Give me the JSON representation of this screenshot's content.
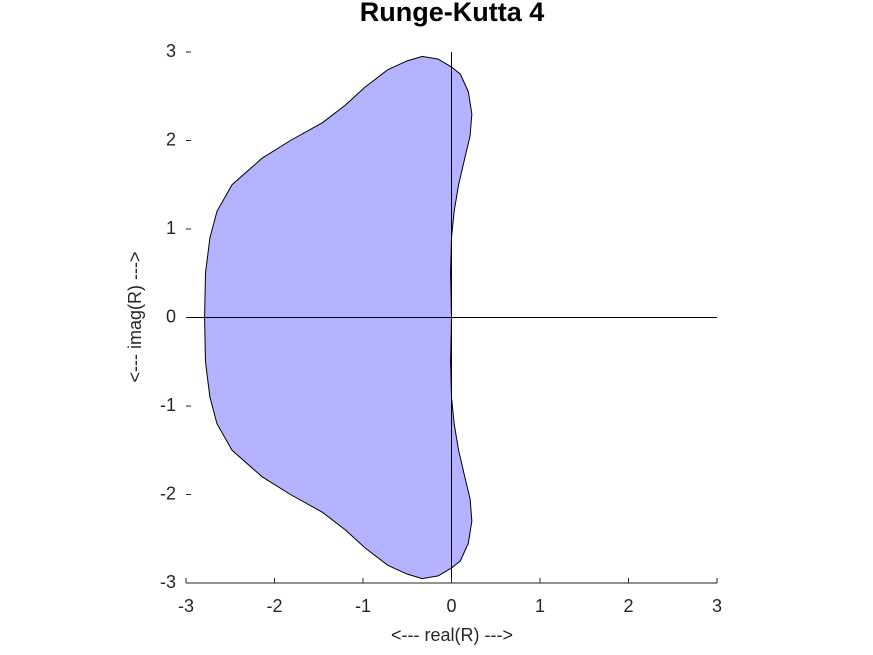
{
  "chart_data": {
    "type": "region",
    "title": "Runge-Kutta 4",
    "xlabel": "<--- real(R) --->",
    "ylabel": "<--- imag(R) --->",
    "color": "#b3b3ff",
    "x": [
      0,
      -0.01,
      0,
      0.03,
      0.08,
      0.15,
      0.21,
      0.23,
      0.19,
      0.1,
      0,
      -0.15,
      -0.33,
      -0.5,
      -0.72,
      -0.98,
      -1.2,
      -1.46,
      -1.82,
      -2.14,
      -2.48,
      -2.65,
      -2.73,
      -2.78,
      -2.79,
      -2.78,
      -2.73,
      -2.65,
      -2.48,
      -2.14,
      -1.82,
      -1.46,
      -1.2,
      -0.98,
      -0.72,
      -0.5,
      -0.33,
      -0.15,
      0,
      0.1,
      0.19,
      0.23,
      0.21,
      0.15,
      0.08,
      0.03,
      0,
      -0.01
    ],
    "y": [
      0,
      0.5,
      0.9,
      1.2,
      1.5,
      1.8,
      2.05,
      2.3,
      2.55,
      2.75,
      2.83,
      2.92,
      2.95,
      2.9,
      2.8,
      2.6,
      2.4,
      2.2,
      2.0,
      1.8,
      1.5,
      1.2,
      0.9,
      0.5,
      0,
      -0.5,
      -0.9,
      -1.2,
      -1.5,
      -1.8,
      -2.0,
      -2.2,
      -2.4,
      -2.6,
      -2.8,
      -2.9,
      -2.95,
      -2.92,
      -2.83,
      -2.75,
      -2.55,
      -2.3,
      -2.05,
      -1.8,
      -1.5,
      -1.2,
      -0.9,
      -0.5
    ],
    "xlim": [
      -3,
      3
    ],
    "ylim": [
      -3,
      3
    ],
    "xticks": [
      -3,
      -2,
      -1,
      0,
      1,
      2,
      3
    ],
    "yticks": [
      -3,
      -2,
      -1,
      0,
      1,
      2,
      3
    ]
  }
}
